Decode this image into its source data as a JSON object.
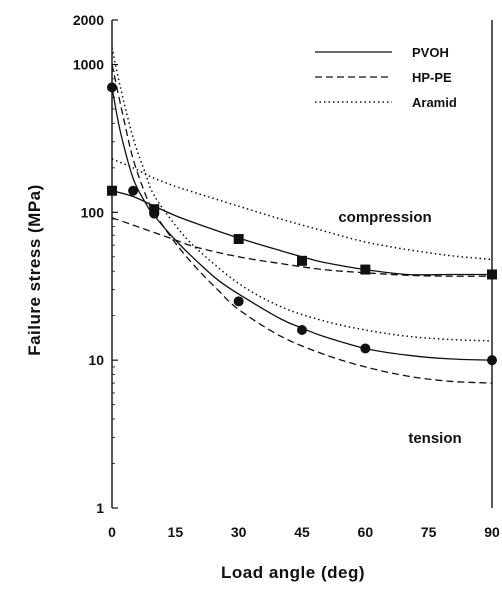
{
  "chart_data": {
    "type": "line",
    "xlabel": "Load angle (deg)",
    "ylabel": "Failure stress (MPa)",
    "xlim": [
      0,
      90
    ],
    "ylim": [
      1,
      2000
    ],
    "yscale": "log",
    "x_ticks": [
      0,
      15,
      30,
      45,
      60,
      75,
      90
    ],
    "y_ticks": [
      {
        "value": 1,
        "label": "1"
      },
      {
        "value": 10,
        "label": "10"
      },
      {
        "value": 100,
        "label": "100"
      },
      {
        "value": 1000,
        "label": "1000"
      },
      {
        "value": 2000,
        "label": "2000"
      }
    ],
    "grid": false,
    "legend_position": "top-right",
    "series": [
      {
        "name": "PVOH",
        "style": "solid",
        "curves": [
          {
            "region": "compression",
            "x": [
              0,
              5,
              10,
              15,
              20,
              30,
              40,
              45,
              50,
              60,
              70,
              80,
              90
            ],
            "y": [
              140,
              128,
              110,
              95,
              84,
              67,
              55,
              50,
              46,
              41,
              38,
              38,
              38
            ]
          },
          {
            "region": "tension",
            "x": [
              0,
              2,
              5,
              8,
              10,
              15,
              20,
              25,
              30,
              40,
              45,
              50,
              60,
              70,
              80,
              90
            ],
            "y": [
              700,
              350,
              170,
              115,
              95,
              65,
              47,
              35,
              28,
              19,
              16.5,
              14.5,
              12,
              10.8,
              10.2,
              10
            ]
          }
        ]
      },
      {
        "name": "HP-PE",
        "style": "dashed",
        "curves": [
          {
            "region": "compression",
            "x": [
              0,
              5,
              10,
              15,
              20,
              30,
              40,
              50,
              60,
              70,
              80,
              90
            ],
            "y": [
              92,
              82,
              73,
              65,
              58,
              50,
              45,
              41,
              39,
              37.5,
              37,
              37
            ]
          },
          {
            "region": "tension",
            "x": [
              0,
              3,
              5,
              8,
              10,
              15,
              20,
              25,
              30,
              40,
              50,
              60,
              70,
              80,
              90
            ],
            "y": [
              1000,
              400,
              230,
              130,
              100,
              62,
              42,
              30,
              22,
              14.5,
              11,
              9,
              7.8,
              7.2,
              7
            ]
          }
        ]
      },
      {
        "name": "Aramid",
        "style": "dotted",
        "curves": [
          {
            "region": "compression",
            "x": [
              0,
              5,
              10,
              15,
              20,
              30,
              40,
              50,
              60,
              70,
              80,
              90
            ],
            "y": [
              230,
              200,
              170,
              150,
              135,
              110,
              90,
              75,
              63,
              56,
              51,
              48
            ]
          },
          {
            "region": "tension",
            "x": [
              0,
              2,
              5,
              8,
              10,
              15,
              20,
              30,
              40,
              50,
              60,
              70,
              80,
              90
            ],
            "y": [
              1300,
              700,
              320,
              180,
              130,
              82,
              57,
              33,
              23,
              18.5,
              16,
              14.5,
              13.8,
              13.5
            ]
          }
        ]
      }
    ],
    "markers": [
      {
        "series": "PVOH",
        "region": "compression",
        "shape": "square",
        "x": [
          0,
          10,
          30,
          45,
          60,
          90
        ],
        "y": [
          140,
          105,
          66,
          47,
          41,
          38
        ]
      },
      {
        "series": "PVOH",
        "region": "tension",
        "shape": "circle",
        "x": [
          0,
          5,
          10,
          30,
          45,
          60,
          90
        ],
        "y": [
          700,
          140,
          98,
          25,
          16,
          12,
          10
        ]
      }
    ],
    "annotations": [
      {
        "text": "compression",
        "x": 62,
        "y": 80
      },
      {
        "text": "tension",
        "x": 72,
        "y": 6.5
      }
    ]
  }
}
